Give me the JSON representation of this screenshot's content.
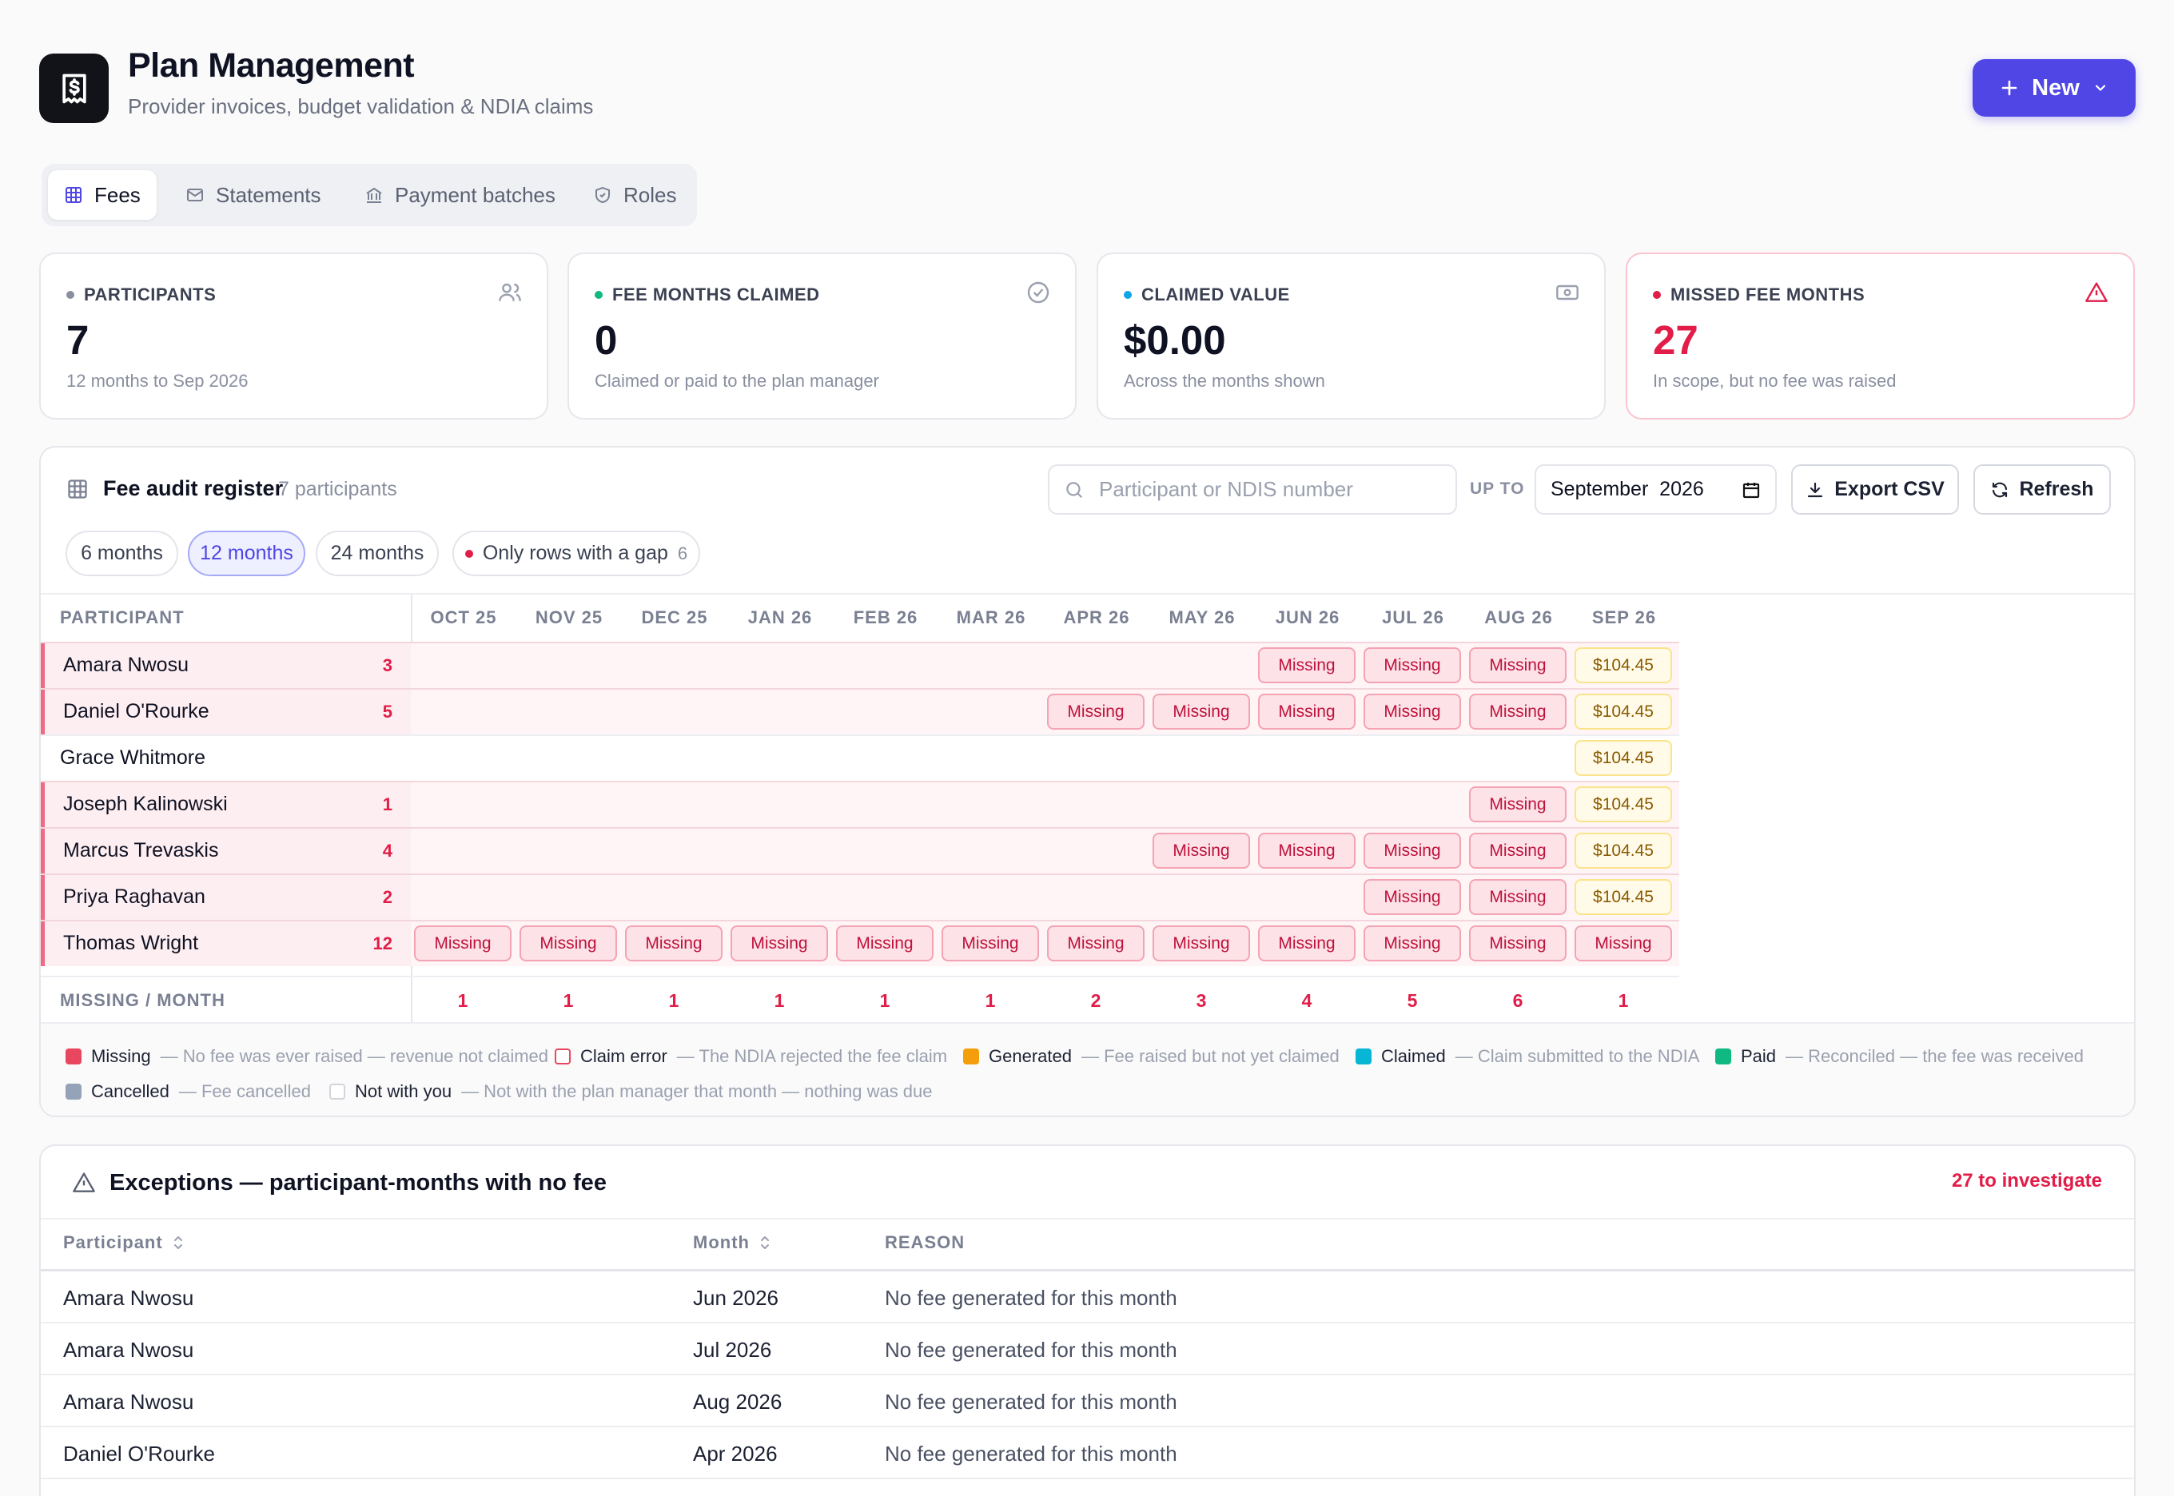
{
  "header": {
    "title": "Plan Management",
    "subtitle": "Provider invoices, budget validation & NDIA claims",
    "logo_icon": "dollar-receipt-icon",
    "new_button": "New"
  },
  "tabs": [
    {
      "label": "Fees",
      "icon": "grid-icon",
      "active": true
    },
    {
      "label": "Statements",
      "icon": "envelope-icon",
      "active": false
    },
    {
      "label": "Payment batches",
      "icon": "bank-icon",
      "active": false
    },
    {
      "label": "Roles",
      "icon": "shield-icon",
      "active": false
    }
  ],
  "stats": [
    {
      "label": "PARTICIPANTS",
      "value": "7",
      "note": "12 months to Sep 2026",
      "dot_color": "#8a8fa0",
      "icon": "users-icon"
    },
    {
      "label": "FEE MONTHS CLAIMED",
      "value": "0",
      "note": "Claimed or paid to the plan manager",
      "dot_color": "#10b981",
      "icon": "check-circle-icon"
    },
    {
      "label": "CLAIMED VALUE",
      "value": "$0.00",
      "note": "Across the months shown",
      "dot_color": "#0ea5e9",
      "icon": "banknote-icon"
    },
    {
      "label": "MISSED FEE MONTHS",
      "value": "27",
      "note": "In scope, but no fee was raised",
      "dot_color": "#e11d48",
      "icon": "alert-triangle-icon"
    }
  ],
  "register": {
    "title": "Fee audit register",
    "count": "7 participants",
    "search_placeholder": "Participant or NDIS number",
    "upto_label": "UP TO",
    "month_value": "September  2026",
    "export_label": "Export CSV",
    "refresh_label": "Refresh",
    "chips": [
      {
        "label": "6 months",
        "active": false
      },
      {
        "label": "12 months",
        "active": true
      },
      {
        "label": "24 months",
        "active": false
      },
      {
        "label": "Only rows with a gap",
        "count": "6",
        "active": false
      }
    ],
    "participant_header": "PARTICIPANT",
    "months": [
      "OCT 25",
      "NOV 25",
      "DEC 25",
      "JAN 26",
      "FEB 26",
      "MAR 26",
      "APR 26",
      "MAY 26",
      "JUN 26",
      "JUL 26",
      "AUG 26",
      "SEP 26"
    ],
    "rows": [
      {
        "name": "Amara Nwosu",
        "gaps": "3",
        "cells": [
          "",
          "",
          "",
          "",
          "",
          "",
          "",
          "",
          "Missing",
          "Missing",
          "Missing",
          "$104.45"
        ]
      },
      {
        "name": "Daniel O'Rourke",
        "gaps": "5",
        "cells": [
          "",
          "",
          "",
          "",
          "",
          "",
          "Missing",
          "Missing",
          "Missing",
          "Missing",
          "Missing",
          "$104.45"
        ]
      },
      {
        "name": "Grace Whitmore",
        "gaps": "",
        "cells": [
          "",
          "",
          "",
          "",
          "",
          "",
          "",
          "",
          "",
          "",
          "",
          "$104.45"
        ]
      },
      {
        "name": "Joseph Kalinowski",
        "gaps": "1",
        "cells": [
          "",
          "",
          "",
          "",
          "",
          "",
          "",
          "",
          "",
          "",
          "Missing",
          "$104.45"
        ]
      },
      {
        "name": "Marcus Trevaskis",
        "gaps": "4",
        "cells": [
          "",
          "",
          "",
          "",
          "",
          "",
          "",
          "Missing",
          "Missing",
          "Missing",
          "Missing",
          "$104.45"
        ]
      },
      {
        "name": "Priya Raghavan",
        "gaps": "2",
        "cells": [
          "",
          "",
          "",
          "",
          "",
          "",
          "",
          "",
          "",
          "Missing",
          "Missing",
          "$104.45"
        ]
      },
      {
        "name": "Thomas Wright",
        "gaps": "12",
        "cells": [
          "Missing",
          "Missing",
          "Missing",
          "Missing",
          "Missing",
          "Missing",
          "Missing",
          "Missing",
          "Missing",
          "Missing",
          "Missing",
          "Missing"
        ]
      }
    ],
    "footer_label": "MISSING / MONTH",
    "missing_per_month": [
      "1",
      "1",
      "1",
      "1",
      "1",
      "1",
      "2",
      "3",
      "4",
      "5",
      "6",
      "1"
    ],
    "legend": [
      {
        "label": "Missing",
        "desc": "— No fee was ever raised — revenue not claimed",
        "color": "#e8475f",
        "outline": false
      },
      {
        "label": "Claim error",
        "desc": "— The NDIA rejected the fee claim",
        "color": "#e8475f",
        "outline": true
      },
      {
        "label": "Generated",
        "desc": "— Fee raised but not yet claimed",
        "color": "#f59e0b",
        "outline": false
      },
      {
        "label": "Claimed",
        "desc": "— Claim submitted to the NDIA",
        "color": "#06b6d4",
        "outline": false
      },
      {
        "label": "Paid",
        "desc": "— Reconciled — the fee was received",
        "color": "#10b981",
        "outline": false
      },
      {
        "label": "Cancelled",
        "desc": "— Fee cancelled",
        "color": "#94a3b8",
        "outline": false
      },
      {
        "label": "Not with you",
        "desc": "— Not with the plan manager that month — nothing was due",
        "color": "#d1d5db",
        "outline": true
      }
    ]
  },
  "exceptions": {
    "title": "Exceptions — participant-months with no fee",
    "count": "27 to investigate",
    "columns": [
      "Participant",
      "Month",
      "REASON"
    ],
    "rows": [
      {
        "participant": "Amara Nwosu",
        "month": "Jun 2026",
        "reason": "No fee generated for this month"
      },
      {
        "participant": "Amara Nwosu",
        "month": "Jul 2026",
        "reason": "No fee generated for this month"
      },
      {
        "participant": "Amara Nwosu",
        "month": "Aug 2026",
        "reason": "No fee generated for this month"
      },
      {
        "participant": "Daniel O'Rourke",
        "month": "Apr 2026",
        "reason": "No fee generated for this month"
      }
    ]
  }
}
